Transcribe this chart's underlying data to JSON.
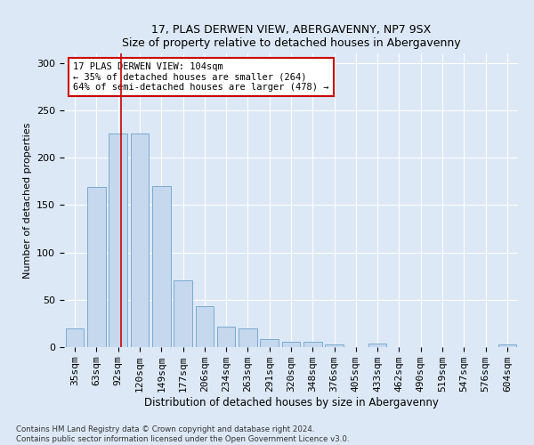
{
  "title1": "17, PLAS DERWEN VIEW, ABERGAVENNY, NP7 9SX",
  "title2": "Size of property relative to detached houses in Abergavenny",
  "xlabel": "Distribution of detached houses by size in Abergavenny",
  "ylabel": "Number of detached properties",
  "categories": [
    "35sqm",
    "63sqm",
    "92sqm",
    "120sqm",
    "149sqm",
    "177sqm",
    "206sqm",
    "234sqm",
    "263sqm",
    "291sqm",
    "320sqm",
    "348sqm",
    "376sqm",
    "405sqm",
    "433sqm",
    "462sqm",
    "490sqm",
    "519sqm",
    "547sqm",
    "576sqm",
    "604sqm"
  ],
  "values": [
    20,
    169,
    225,
    225,
    170,
    70,
    43,
    22,
    20,
    8,
    6,
    6,
    3,
    0,
    4,
    0,
    0,
    0,
    0,
    0,
    3
  ],
  "bar_color": "#c5d8ee",
  "bar_edge_color": "#7aabcf",
  "vline_x": 2.15,
  "vline_color": "#cc0000",
  "annotation_title": "17 PLAS DERWEN VIEW: 104sqm",
  "annotation_line1": "← 35% of detached houses are smaller (264)",
  "annotation_line2": "64% of semi-detached houses are larger (478) →",
  "annotation_box_color": "#ffffff",
  "annotation_box_edge": "#cc0000",
  "footer1": "Contains HM Land Registry data © Crown copyright and database right 2024.",
  "footer2": "Contains public sector information licensed under the Open Government Licence v3.0.",
  "ylim": [
    0,
    310
  ],
  "yticks": [
    0,
    50,
    100,
    150,
    200,
    250,
    300
  ],
  "background_color": "#dce8f5",
  "plot_bg_color": "#dce8f5"
}
